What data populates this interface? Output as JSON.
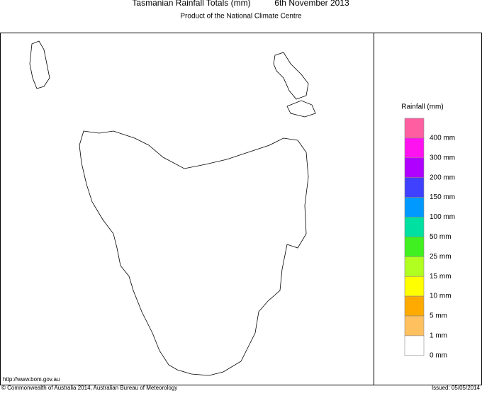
{
  "header": {
    "title": "Tasmanian Rainfall Totals (mm)",
    "date": "6th November 2013",
    "subtitle": "Product of the National Climate Centre"
  },
  "legend": {
    "title": "Rainfall (mm)",
    "colors": [
      "#ff5fa0",
      "#ff12f0",
      "#b000ff",
      "#4040ff",
      "#0099ff",
      "#00e0a0",
      "#40f020",
      "#b0ff20",
      "#ffff00",
      "#ffaa00",
      "#ffc060",
      "#ffffff"
    ],
    "labels": [
      "400 mm",
      "300 mm",
      "200 mm",
      "150 mm",
      "100 mm",
      "50 mm",
      "25 mm",
      "15 mm",
      "10 mm",
      "5 mm",
      "1 mm",
      "0 mm"
    ]
  },
  "footer": {
    "url": "http://www.bom.gov.au",
    "copyright": "© Commonwealth of Australia 2014, Australian Bureau of Meteorology",
    "issued": "Issued: 05/05/2014"
  }
}
